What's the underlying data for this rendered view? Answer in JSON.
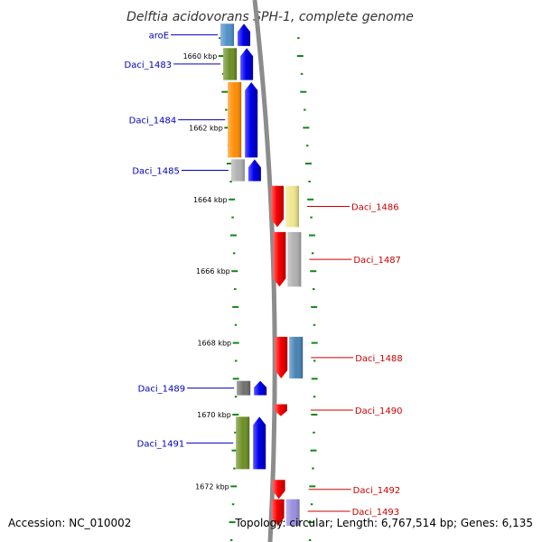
{
  "title": "Delftia acidovorans SPH-1, complete genome",
  "accession": "Accession: NC_010002",
  "topology": "Topology: circular; Length: 6,767,514 bp; Genes: 6,135",
  "colors": {
    "left_label": "#0000bb",
    "right_label": "#cc0000",
    "ruler_tick": "#118811",
    "backbone": "#8c8c8c",
    "forward_strand": "#0000ee",
    "reverse_strand": "#ee0000"
  },
  "ruler": [
    {
      "label": "1660 kbp",
      "kbp": 1660
    },
    {
      "label": "1662 kbp",
      "kbp": 1662
    },
    {
      "label": "1664 kbp",
      "kbp": 1664
    },
    {
      "label": "1666 kbp",
      "kbp": 1666
    },
    {
      "label": "1668 kbp",
      "kbp": 1668
    },
    {
      "label": "1670 kbp",
      "kbp": 1670
    },
    {
      "label": "1672 kbp",
      "kbp": 1672
    }
  ],
  "genes": [
    {
      "name": "aroE",
      "strand": "forward",
      "start_kbp": 1659.1,
      "end_kbp": 1659.72,
      "cog_color": "#4f8fc8"
    },
    {
      "name": "Daci_1483",
      "strand": "forward",
      "start_kbp": 1659.78,
      "end_kbp": 1660.67,
      "cog_color": "#6b8e23"
    },
    {
      "name": "Daci_1484",
      "strand": "forward",
      "start_kbp": 1660.73,
      "end_kbp": 1662.83,
      "cog_color": "#ff8c00"
    },
    {
      "name": "Daci_1485",
      "strand": "forward",
      "start_kbp": 1662.88,
      "end_kbp": 1663.49,
      "cog_color": "#b0b0b0"
    },
    {
      "name": "Daci_1486",
      "strand": "reverse",
      "start_kbp": 1663.62,
      "end_kbp": 1664.77,
      "cog_color": "#f0e68c"
    },
    {
      "name": "Daci_1487",
      "strand": "reverse",
      "start_kbp": 1664.91,
      "end_kbp": 1666.43,
      "cog_color": "#b0b0b0"
    },
    {
      "name": "Daci_1488",
      "strand": "reverse",
      "start_kbp": 1667.83,
      "end_kbp": 1668.99,
      "cog_color": "#4682b4"
    },
    {
      "name": "Daci_1489",
      "strand": "forward",
      "start_kbp": 1669.06,
      "end_kbp": 1669.46,
      "cog_color": "#707070"
    },
    {
      "name": "Daci_1490",
      "strand": "reverse",
      "start_kbp": 1669.71,
      "end_kbp": 1670.04,
      "cog_color": ""
    },
    {
      "name": "Daci_1491",
      "strand": "forward",
      "start_kbp": 1670.06,
      "end_kbp": 1671.52,
      "cog_color": "#6b8e23"
    },
    {
      "name": "Daci_1492",
      "strand": "reverse",
      "start_kbp": 1671.82,
      "end_kbp": 1672.35,
      "cog_color": ""
    },
    {
      "name": "Daci_1493",
      "strand": "reverse",
      "start_kbp": 1672.36,
      "end_kbp": 1673.1,
      "cog_color": "#9a8ee0"
    }
  ]
}
